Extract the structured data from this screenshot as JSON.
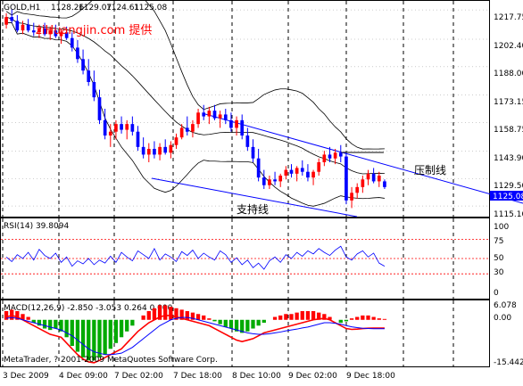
{
  "chart_data": [
    {
      "type": "candlestick",
      "header": {
        "symbol_tf": "GOLD,H1",
        "open": "1128.26",
        "high": "1129.07",
        "low": "1124.61",
        "close": "1125.08"
      },
      "watermark": "ziHuangjin.com 提供",
      "annotations": {
        "resistance": "压制线",
        "support": "支持线"
      },
      "y_ticks": [
        "1217.75",
        "1202.40",
        "1188.00",
        "1173.15",
        "1158.75",
        "1143.90",
        "1129.50",
        "1115.10"
      ],
      "current_price": "1125.08",
      "ylim": [
        1110,
        1222
      ],
      "ohlc": [
        [
          1210,
          1216,
          1208,
          1214
        ],
        [
          1214,
          1218,
          1211,
          1212
        ],
        [
          1212,
          1215,
          1206,
          1207
        ],
        [
          1207,
          1212,
          1205,
          1210
        ],
        [
          1210,
          1213,
          1206,
          1207
        ],
        [
          1207,
          1211,
          1204,
          1206
        ],
        [
          1206,
          1210,
          1203,
          1208
        ],
        [
          1208,
          1211,
          1204,
          1205
        ],
        [
          1205,
          1209,
          1202,
          1207
        ],
        [
          1207,
          1210,
          1203,
          1204
        ],
        [
          1204,
          1208,
          1200,
          1206
        ],
        [
          1206,
          1209,
          1202,
          1203
        ],
        [
          1203,
          1206,
          1196,
          1198
        ],
        [
          1198,
          1202,
          1190,
          1192
        ],
        [
          1192,
          1197,
          1184,
          1186
        ],
        [
          1186,
          1192,
          1178,
          1180
        ],
        [
          1180,
          1186,
          1170,
          1172
        ],
        [
          1172,
          1176,
          1158,
          1160
        ],
        [
          1160,
          1166,
          1150,
          1152
        ],
        [
          1152,
          1158,
          1146,
          1154
        ],
        [
          1154,
          1160,
          1150,
          1158
        ],
        [
          1158,
          1162,
          1153,
          1155
        ],
        [
          1155,
          1160,
          1150,
          1158
        ],
        [
          1158,
          1162,
          1152,
          1154
        ],
        [
          1154,
          1157,
          1144,
          1146
        ],
        [
          1146,
          1151,
          1140,
          1142
        ],
        [
          1142,
          1148,
          1138,
          1145
        ],
        [
          1145,
          1149,
          1140,
          1142
        ],
        [
          1142,
          1148,
          1139,
          1146
        ],
        [
          1146,
          1150,
          1142,
          1143
        ],
        [
          1143,
          1149,
          1140,
          1147
        ],
        [
          1147,
          1153,
          1145,
          1151
        ],
        [
          1151,
          1158,
          1150,
          1156
        ],
        [
          1156,
          1162,
          1152,
          1154
        ],
        [
          1154,
          1160,
          1151,
          1158
        ],
        [
          1158,
          1166,
          1156,
          1164
        ],
        [
          1164,
          1168,
          1160,
          1162
        ],
        [
          1162,
          1167,
          1158,
          1165
        ],
        [
          1165,
          1168,
          1160,
          1161
        ],
        [
          1161,
          1165,
          1156,
          1163
        ],
        [
          1163,
          1166,
          1158,
          1160
        ],
        [
          1160,
          1164,
          1154,
          1156
        ],
        [
          1156,
          1162,
          1152,
          1160
        ],
        [
          1160,
          1163,
          1150,
          1152
        ],
        [
          1152,
          1156,
          1144,
          1146
        ],
        [
          1146,
          1150,
          1138,
          1140
        ],
        [
          1140,
          1145,
          1128,
          1130
        ],
        [
          1130,
          1134,
          1124,
          1126
        ],
        [
          1126,
          1131,
          1124,
          1129
        ],
        [
          1129,
          1133,
          1126,
          1128
        ],
        [
          1128,
          1132,
          1125,
          1131
        ],
        [
          1131,
          1136,
          1129,
          1134
        ],
        [
          1134,
          1137,
          1130,
          1132
        ],
        [
          1132,
          1136,
          1128,
          1135
        ],
        [
          1135,
          1139,
          1131,
          1133
        ],
        [
          1133,
          1137,
          1128,
          1130
        ],
        [
          1130,
          1134,
          1126,
          1133
        ],
        [
          1133,
          1140,
          1131,
          1138
        ],
        [
          1138,
          1144,
          1136,
          1142
        ],
        [
          1142,
          1146,
          1138,
          1140
        ],
        [
          1140,
          1145,
          1137,
          1143
        ],
        [
          1143,
          1147,
          1138,
          1141
        ],
        [
          1141,
          1143,
          1116,
          1118
        ],
        [
          1118,
          1125,
          1114,
          1122
        ],
        [
          1122,
          1127,
          1119,
          1125
        ],
        [
          1125,
          1131,
          1122,
          1129
        ],
        [
          1129,
          1134,
          1126,
          1132
        ],
        [
          1132,
          1135,
          1127,
          1128
        ],
        [
          1128,
          1133,
          1125,
          1131
        ],
        [
          1128,
          1129,
          1124,
          1125
        ]
      ],
      "rsi": {
        "label": "RSI(14) 39.8094",
        "ticks": [
          "100",
          "75",
          "50",
          "30",
          "0"
        ],
        "values": [
          52,
          46,
          55,
          50,
          58,
          48,
          62,
          54,
          50,
          57,
          45,
          52,
          40,
          47,
          43,
          50,
          42,
          48,
          44,
          53,
          45,
          58,
          52,
          47,
          60,
          55,
          50,
          63,
          48,
          56,
          52,
          46,
          59,
          54,
          61,
          50,
          57,
          52,
          48,
          60,
          55,
          45,
          51,
          42,
          48,
          38,
          44,
          36,
          47,
          52,
          45,
          55,
          50,
          58,
          53,
          60,
          56,
          63,
          58,
          54,
          61,
          66,
          52,
          48,
          56,
          60,
          52,
          57,
          44,
          40
        ]
      },
      "macd": {
        "label": "MACD(12,26,9) -2.850 -3.053 0.264 0.000",
        "ticks": [
          "6.078",
          "0.00",
          "-15.442"
        ],
        "ylim": [
          -15.442,
          6.078
        ],
        "hist": [
          3,
          3.5,
          3,
          2,
          1,
          -1,
          -2,
          -3,
          -3.5,
          -3,
          -4,
          -6,
          -9,
          -11,
          -13,
          -14,
          -14,
          -13,
          -12,
          -10,
          -8,
          -6,
          -4,
          -2,
          0,
          1.5,
          3,
          4,
          5,
          5,
          4.5,
          4,
          3.5,
          3,
          2.5,
          2,
          1.5,
          0.5,
          -0.5,
          -1.5,
          -2.5,
          -3,
          -4,
          -4.5,
          -4,
          -3,
          -2,
          -1,
          0,
          1,
          1.5,
          2,
          2,
          2.5,
          3,
          3,
          3,
          2.5,
          2,
          1,
          0,
          -1,
          -0.5,
          0.5,
          1,
          1.5,
          1.5,
          1,
          0.5,
          0.3
        ],
        "macd_line": [
          1,
          1.5,
          1,
          0,
          -1,
          -2,
          -3,
          -4,
          -5,
          -5.5,
          -6,
          -8,
          -10,
          -12,
          -13.5,
          -14.5,
          -14.8,
          -14,
          -13,
          -12,
          -11,
          -10,
          -8,
          -6,
          -4,
          -2.5,
          -1,
          0,
          1,
          1.5,
          1.5,
          1,
          0.5,
          0,
          -0.5,
          -1,
          -1.5,
          -2,
          -3,
          -4,
          -5,
          -6,
          -7,
          -7.5,
          -7,
          -6.5,
          -5.5,
          -4.5,
          -4,
          -3.5,
          -3,
          -2.5,
          -2,
          -1.5,
          -1,
          -0.5,
          0,
          0.3,
          0.5,
          0,
          -1,
          -2,
          -3,
          -3.3,
          -3.2,
          -3,
          -2.9,
          -2.85,
          -2.85,
          -2.85
        ],
        "signal_line": [
          0.5,
          0.8,
          0.5,
          0,
          -0.5,
          -1,
          -1.5,
          -2,
          -2.5,
          -3,
          -3.5,
          -4.5,
          -5.5,
          -7,
          -8.5,
          -10,
          -11,
          -11.5,
          -12,
          -12,
          -11.8,
          -11.5,
          -10.5,
          -9.5,
          -8,
          -6.5,
          -5,
          -3.5,
          -2,
          -1,
          0,
          0.5,
          0.8,
          0.8,
          0.5,
          0,
          -0.5,
          -1,
          -1.5,
          -2,
          -2.5,
          -3,
          -3.5,
          -4,
          -4.5,
          -4.8,
          -5,
          -5,
          -4.8,
          -4.5,
          -4.2,
          -3.8,
          -3.5,
          -3.2,
          -2.8,
          -2.5,
          -2,
          -1.5,
          -1,
          -1,
          -1.2,
          -1.5,
          -2,
          -2.4,
          -2.7,
          -2.9,
          -3,
          -3.05,
          -3.05,
          -3.05
        ]
      },
      "copyright": "MetaTrader, ? 2001-2009 MetaQuotes Software Corp.",
      "x_labels": [
        "3 Dec 2009",
        "4 Dec 09:00",
        "7 Dec 02:00",
        "7 Dec 18:00",
        "8 Dec 10:00",
        "9 Dec 02:00",
        "9 Dec 18:00"
      ]
    }
  ],
  "colors": {
    "background": "#ffffff",
    "grid": "#000000",
    "bull_candle": "#ff0000",
    "bear_candle": "#0000ff",
    "bands": "#000000",
    "trendline": "#0000ff",
    "rsi_line": "#0000ff",
    "level_line": "#ff0000",
    "hist_up": "#ff0000",
    "hist_down": "#00aa00",
    "macd_line": "#ff0000",
    "signal_line": "#0000ff",
    "price_label_bg": "#0000ff",
    "watermark": "#ff0000"
  }
}
